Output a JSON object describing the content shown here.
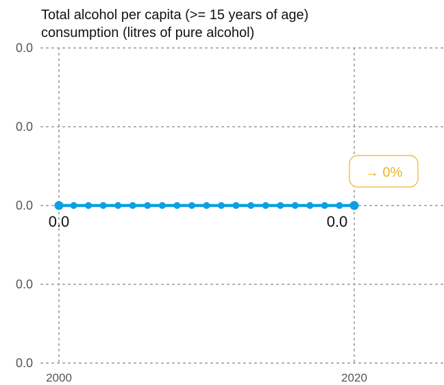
{
  "colors": {
    "series": "#0aa0e3",
    "badge": "#f0b323",
    "grid": "#aaaaaa",
    "text": "#111111",
    "tick": "#555555"
  },
  "chart_data": {
    "type": "line",
    "title": "Total alcohol per capita (>= 15 years of age) consumption (litres of pure alcohol)",
    "title_lines": [
      "Total alcohol per capita (>= 15 years of age)",
      "consumption (litres of pure alcohol)"
    ],
    "xlabel": "",
    "ylabel": "",
    "x_ticks": [
      "2000",
      "2020"
    ],
    "y_tick_labels": [
      "0.0",
      "0.0",
      "0.0",
      "0.0",
      "0.0"
    ],
    "grid": true,
    "legend": "none",
    "series": [
      {
        "x": [
          2000,
          2001,
          2002,
          2003,
          2004,
          2005,
          2006,
          2007,
          2008,
          2009,
          2010,
          2011,
          2012,
          2013,
          2014,
          2015,
          2016,
          2017,
          2018,
          2019,
          2020
        ],
        "values": [
          0,
          0,
          0,
          0,
          0,
          0,
          0,
          0,
          0,
          0,
          0,
          0,
          0,
          0,
          0,
          0,
          0,
          0,
          0,
          0,
          0
        ]
      }
    ],
    "annotations": {
      "start_label": "0.0",
      "end_label": "0.0",
      "change_label": "→ 0%"
    }
  }
}
